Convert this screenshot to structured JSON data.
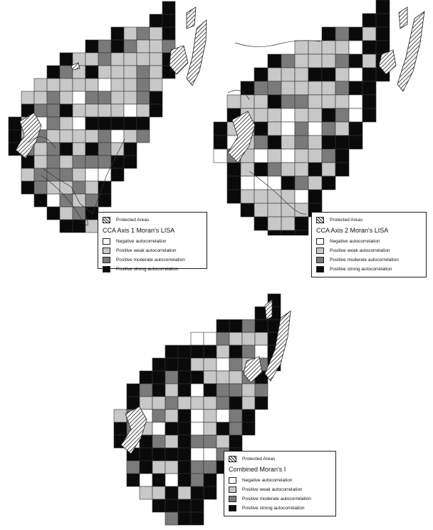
{
  "colors": {
    "negative": "#ffffff",
    "weak": "#c8c8c8",
    "moderate": "#7a7a7a",
    "strong": "#0a0a0a",
    "protected": "hatched",
    "border": "#333333"
  },
  "maps": [
    {
      "title": "CCA Axis 1 Moran's LISA",
      "protected_label": "Protected Areas",
      "legend": [
        {
          "label": "Negative autocorrelation",
          "class": "negative"
        },
        {
          "label": "Positive weak autocorrelation",
          "class": "weak"
        },
        {
          "label": "Positive moderate autocorrelation",
          "class": "moderate"
        },
        {
          "label": "Positive strong autocorrelation",
          "class": "strong"
        }
      ]
    },
    {
      "title": "CCA Axis 2 Moran's LISA",
      "protected_label": "Protected Areas",
      "legend": [
        {
          "label": "Negative autocorrelation",
          "class": "negative"
        },
        {
          "label": "Positive weak autocorrelation",
          "class": "weak"
        },
        {
          "label": "Positive moderate autocorrelation",
          "class": "moderate"
        },
        {
          "label": "Positive strong autocorrelation",
          "class": "strong"
        }
      ]
    },
    {
      "title": "Combined Moran's I",
      "protected_label": "Protected Areas",
      "legend": [
        {
          "label": "Negative autocorrelation",
          "class": "negative"
        },
        {
          "label": "Positive weak autocorrelation",
          "class": "weak"
        },
        {
          "label": "Positive moderate autocorrelation",
          "class": "moderate"
        },
        {
          "label": "Positive strong autocorrelation",
          "class": "strong"
        }
      ]
    }
  ]
}
